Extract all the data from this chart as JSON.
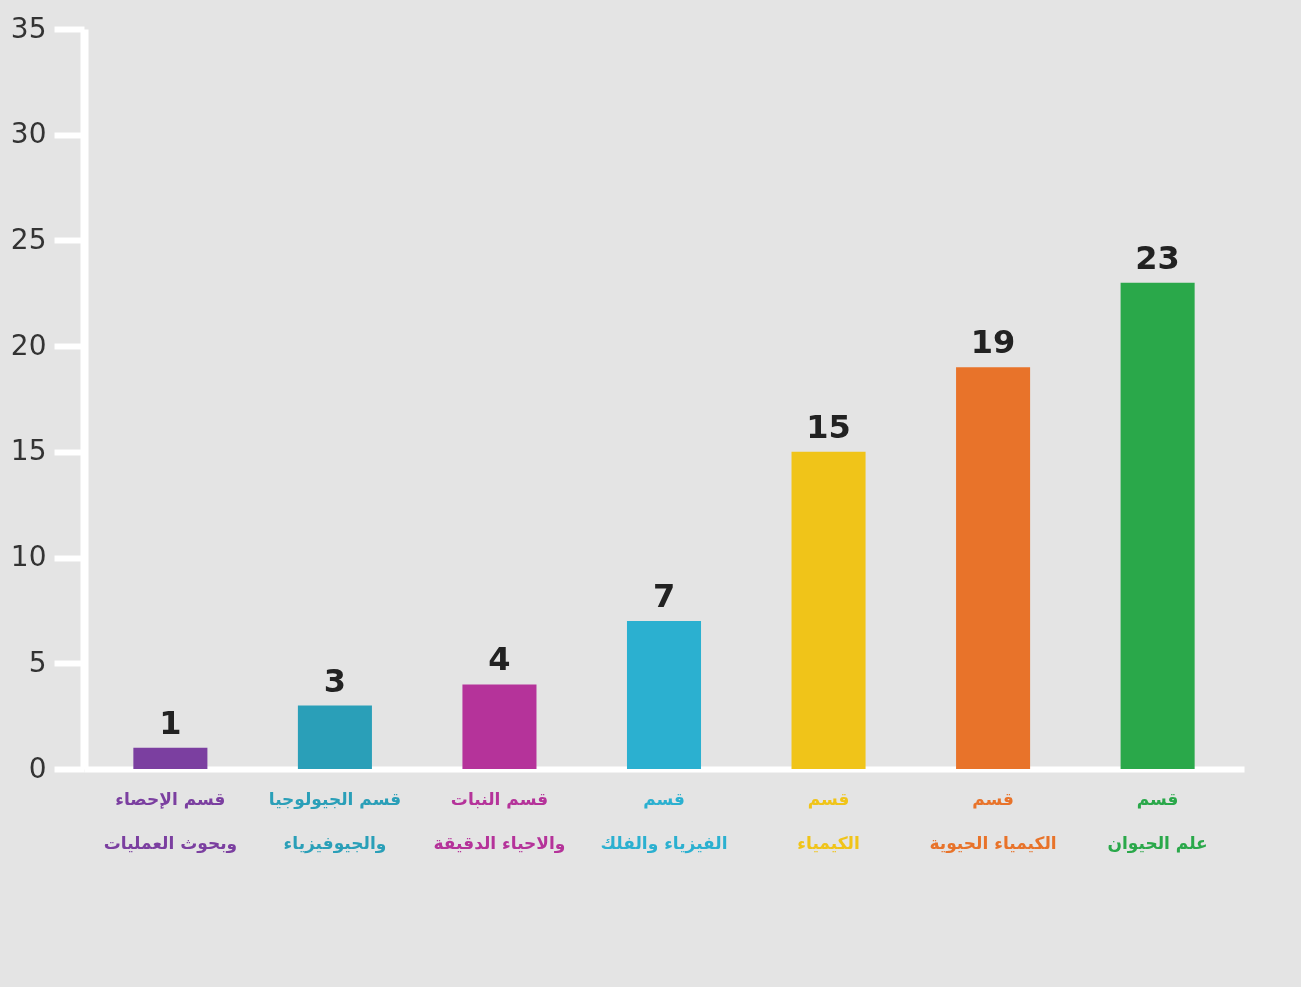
{
  "chart_data": {
    "type": "bar",
    "categories": [
      "قسم الإحصاء\nوبحوث العمليات",
      "قسم الجيولوجيا\nوالجيوفيزياء",
      "قسم النبات\nوالاحياء الدقيقة",
      "قسم\nالفيزياء والفلك",
      "قسم\nالكيمياء",
      "قسم\nالكيمياء الحيوية",
      "قسم\nعلم الحيوان"
    ],
    "values": [
      1,
      3,
      4,
      7,
      15,
      19,
      23
    ],
    "colors": [
      "#7b3fa0",
      "#2a9fb8",
      "#b5339a",
      "#2bb0d0",
      "#f0c419",
      "#e8732a",
      "#2aa84a"
    ],
    "ylim": [
      0,
      35
    ],
    "yticks": [
      0,
      5,
      10,
      15,
      20,
      25,
      30,
      35
    ],
    "data_labels": true,
    "grid": false
  }
}
